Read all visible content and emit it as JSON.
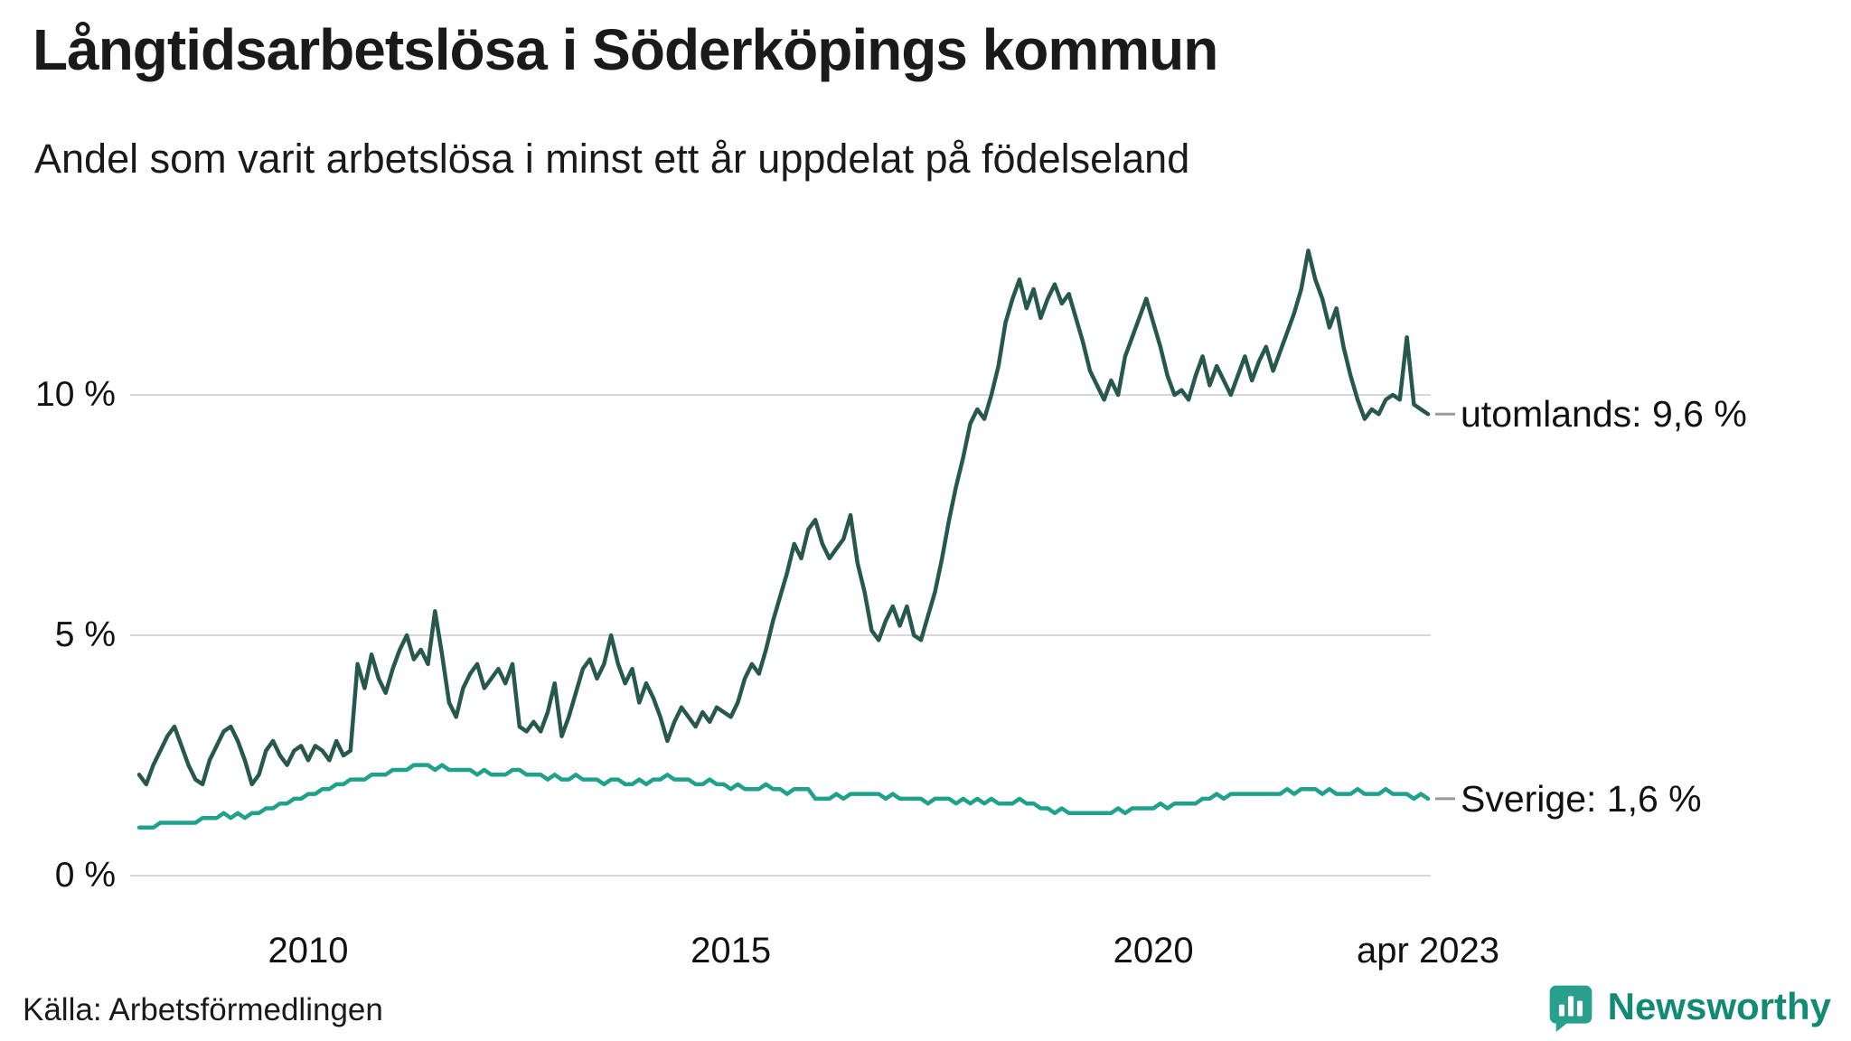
{
  "page": {
    "title": "Långtidsarbetslösa i Söderköpings kommun",
    "subtitle": "Andel som varit arbetslösa i minst ett år uppdelat på födelseland",
    "source": "Källa: Arbetsförmedlingen",
    "brand": {
      "name": "Newsworthy",
      "icon": "bar-chart-bubble-icon",
      "icon_color": "#29A08E",
      "text_color": "#128A74"
    }
  },
  "chart_data": {
    "type": "line",
    "title": "Långtidsarbetslösa i Söderköpings kommun",
    "subtitle": "Andel som varit arbetslösa i minst ett år uppdelat på födelseland",
    "x_start": "2008-01",
    "x_end": "2023-04",
    "x_interval": "monthly",
    "ylim": [
      0,
      13.5
    ],
    "grid": "horizontal",
    "gridline_color": "#d8d8d8",
    "legend_position": "end-of-line-labels",
    "y_ticks": [
      {
        "label": "0 %",
        "value": 0
      },
      {
        "label": "5 %",
        "value": 5
      },
      {
        "label": "10 %",
        "value": 10
      }
    ],
    "x_ticks": [
      {
        "label": "2010",
        "month_index": 24
      },
      {
        "label": "2015",
        "month_index": 84
      },
      {
        "label": "2020",
        "month_index": 144
      },
      {
        "label": "apr 2023",
        "month_index": 183
      }
    ],
    "series": [
      {
        "name": "utomlands",
        "color": "#27584E",
        "end_label": "utomlands: 9,6 %",
        "last_value": 9.6,
        "values": [
          2.1,
          1.9,
          2.3,
          2.6,
          2.9,
          3.1,
          2.7,
          2.3,
          2.0,
          1.9,
          2.4,
          2.7,
          3.0,
          3.1,
          2.8,
          2.4,
          1.9,
          2.1,
          2.6,
          2.8,
          2.5,
          2.3,
          2.6,
          2.7,
          2.4,
          2.7,
          2.6,
          2.4,
          2.8,
          2.5,
          2.6,
          4.4,
          3.9,
          4.6,
          4.1,
          3.8,
          4.3,
          4.7,
          5.0,
          4.5,
          4.7,
          4.4,
          5.5,
          4.6,
          3.6,
          3.3,
          3.9,
          4.2,
          4.4,
          3.9,
          4.1,
          4.3,
          4.0,
          4.4,
          3.1,
          3.0,
          3.2,
          3.0,
          3.4,
          4.0,
          2.9,
          3.3,
          3.8,
          4.3,
          4.5,
          4.1,
          4.4,
          5.0,
          4.4,
          4.0,
          4.3,
          3.6,
          4.0,
          3.7,
          3.3,
          2.8,
          3.2,
          3.5,
          3.3,
          3.1,
          3.4,
          3.2,
          3.5,
          3.4,
          3.3,
          3.6,
          4.1,
          4.4,
          4.2,
          4.7,
          5.3,
          5.8,
          6.3,
          6.9,
          6.6,
          7.2,
          7.4,
          6.9,
          6.6,
          6.8,
          7.0,
          7.5,
          6.5,
          5.9,
          5.1,
          4.9,
          5.3,
          5.6,
          5.2,
          5.6,
          5.0,
          4.9,
          5.4,
          5.9,
          6.6,
          7.4,
          8.1,
          8.7,
          9.4,
          9.7,
          9.5,
          10.0,
          10.6,
          11.5,
          12.0,
          12.4,
          11.8,
          12.2,
          11.6,
          12.0,
          12.3,
          11.9,
          12.1,
          11.6,
          11.1,
          10.5,
          10.2,
          9.9,
          10.3,
          10.0,
          10.8,
          11.2,
          11.6,
          12.0,
          11.5,
          11.0,
          10.4,
          10.0,
          10.1,
          9.9,
          10.4,
          10.8,
          10.2,
          10.6,
          10.3,
          10.0,
          10.4,
          10.8,
          10.3,
          10.7,
          11.0,
          10.5,
          10.9,
          11.3,
          11.7,
          12.2,
          13.0,
          12.4,
          12.0,
          11.4,
          11.8,
          11.0,
          10.4,
          9.9,
          9.5,
          9.7,
          9.6,
          9.9,
          10.0,
          9.9,
          11.2,
          9.8,
          9.7,
          9.6
        ]
      },
      {
        "name": "Sverige",
        "color": "#1FA18C",
        "end_label": "Sverige: 1,6 %",
        "last_value": 1.6,
        "values": [
          1.0,
          1.0,
          1.0,
          1.1,
          1.1,
          1.1,
          1.1,
          1.1,
          1.1,
          1.2,
          1.2,
          1.2,
          1.3,
          1.2,
          1.3,
          1.2,
          1.3,
          1.3,
          1.4,
          1.4,
          1.5,
          1.5,
          1.6,
          1.6,
          1.7,
          1.7,
          1.8,
          1.8,
          1.9,
          1.9,
          2.0,
          2.0,
          2.0,
          2.1,
          2.1,
          2.1,
          2.2,
          2.2,
          2.2,
          2.3,
          2.3,
          2.3,
          2.2,
          2.3,
          2.2,
          2.2,
          2.2,
          2.2,
          2.1,
          2.2,
          2.1,
          2.1,
          2.1,
          2.2,
          2.2,
          2.1,
          2.1,
          2.1,
          2.0,
          2.1,
          2.0,
          2.0,
          2.1,
          2.0,
          2.0,
          2.0,
          1.9,
          2.0,
          2.0,
          1.9,
          1.9,
          2.0,
          1.9,
          2.0,
          2.0,
          2.1,
          2.0,
          2.0,
          2.0,
          1.9,
          1.9,
          2.0,
          1.9,
          1.9,
          1.8,
          1.9,
          1.8,
          1.8,
          1.8,
          1.9,
          1.8,
          1.8,
          1.7,
          1.8,
          1.8,
          1.8,
          1.6,
          1.6,
          1.6,
          1.7,
          1.6,
          1.7,
          1.7,
          1.7,
          1.7,
          1.7,
          1.6,
          1.7,
          1.6,
          1.6,
          1.6,
          1.6,
          1.5,
          1.6,
          1.6,
          1.6,
          1.5,
          1.6,
          1.5,
          1.6,
          1.5,
          1.6,
          1.5,
          1.5,
          1.5,
          1.6,
          1.5,
          1.5,
          1.4,
          1.4,
          1.3,
          1.4,
          1.3,
          1.3,
          1.3,
          1.3,
          1.3,
          1.3,
          1.3,
          1.4,
          1.3,
          1.4,
          1.4,
          1.4,
          1.4,
          1.5,
          1.4,
          1.5,
          1.5,
          1.5,
          1.5,
          1.6,
          1.6,
          1.7,
          1.6,
          1.7,
          1.7,
          1.7,
          1.7,
          1.7,
          1.7,
          1.7,
          1.7,
          1.8,
          1.7,
          1.8,
          1.8,
          1.8,
          1.7,
          1.8,
          1.7,
          1.7,
          1.7,
          1.8,
          1.7,
          1.7,
          1.7,
          1.8,
          1.7,
          1.7,
          1.7,
          1.6,
          1.7,
          1.6
        ]
      }
    ]
  }
}
